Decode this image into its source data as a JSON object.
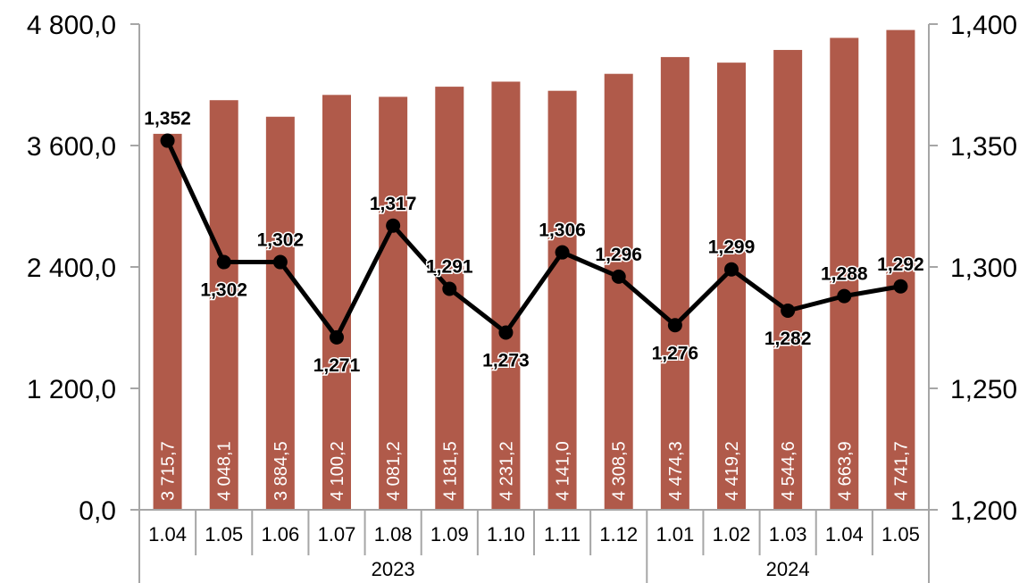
{
  "chart_data": {
    "type": "bar",
    "categories": [
      "1.04",
      "1.05",
      "1.06",
      "1.07",
      "1.08",
      "1.09",
      "1.10",
      "1.11",
      "1.12",
      "1.01",
      "1.02",
      "1.03",
      "1.04",
      "1.05"
    ],
    "year_groups": [
      {
        "label": "2023",
        "count": 9
      },
      {
        "label": "2024",
        "count": 5
      }
    ],
    "bar_series": {
      "values": [
        3715.7,
        4048.1,
        3884.5,
        4100.2,
        4081.2,
        4181.5,
        4231.2,
        4141.0,
        4308.5,
        4474.3,
        4419.2,
        4544.6,
        4663.9,
        4741.7
      ],
      "labels": [
        "3 715,7",
        "4 048,1",
        "3 884,5",
        "4 100,2",
        "4 081,2",
        "4 181,5",
        "4 231,2",
        "4 141,0",
        "4 308,5",
        "4 474,3",
        "4 419,2",
        "4 544,6",
        "4 663,9",
        "4 741,7"
      ],
      "color": "#b05a4a",
      "axis": "left"
    },
    "line_series": {
      "values": [
        1.352,
        1.302,
        1.302,
        1.271,
        1.317,
        1.291,
        1.273,
        1.306,
        1.296,
        1.276,
        1.299,
        1.282,
        1.288,
        1.292
      ],
      "labels": [
        "1,352",
        "1,302",
        "1,302",
        "1,271",
        "1,317",
        "1,291",
        "1,273",
        "1,306",
        "1,296",
        "1,276",
        "1,299",
        "1,282",
        "1,288",
        "1,292"
      ],
      "label_positions": [
        "above",
        "below",
        "above",
        "below",
        "above",
        "above",
        "below",
        "above",
        "above",
        "below",
        "above",
        "below",
        "above",
        "above"
      ],
      "color": "#000000",
      "axis": "right"
    },
    "y_left": {
      "ylim": [
        0,
        4800
      ],
      "ticks": [
        0,
        1200,
        2400,
        3600,
        4800
      ],
      "tick_labels": [
        "0,0",
        "1 200,0",
        "2 400,0",
        "3 600,0",
        "4 800,0"
      ]
    },
    "y_right": {
      "ylim": [
        1.2,
        1.4
      ],
      "ticks": [
        1.2,
        1.25,
        1.3,
        1.35,
        1.4
      ],
      "tick_labels": [
        "1,200",
        "1,250",
        "1,300",
        "1,350",
        "1,400"
      ]
    },
    "title": "",
    "xlabel": "",
    "ylabel": "",
    "grid": false,
    "legend": "none"
  }
}
